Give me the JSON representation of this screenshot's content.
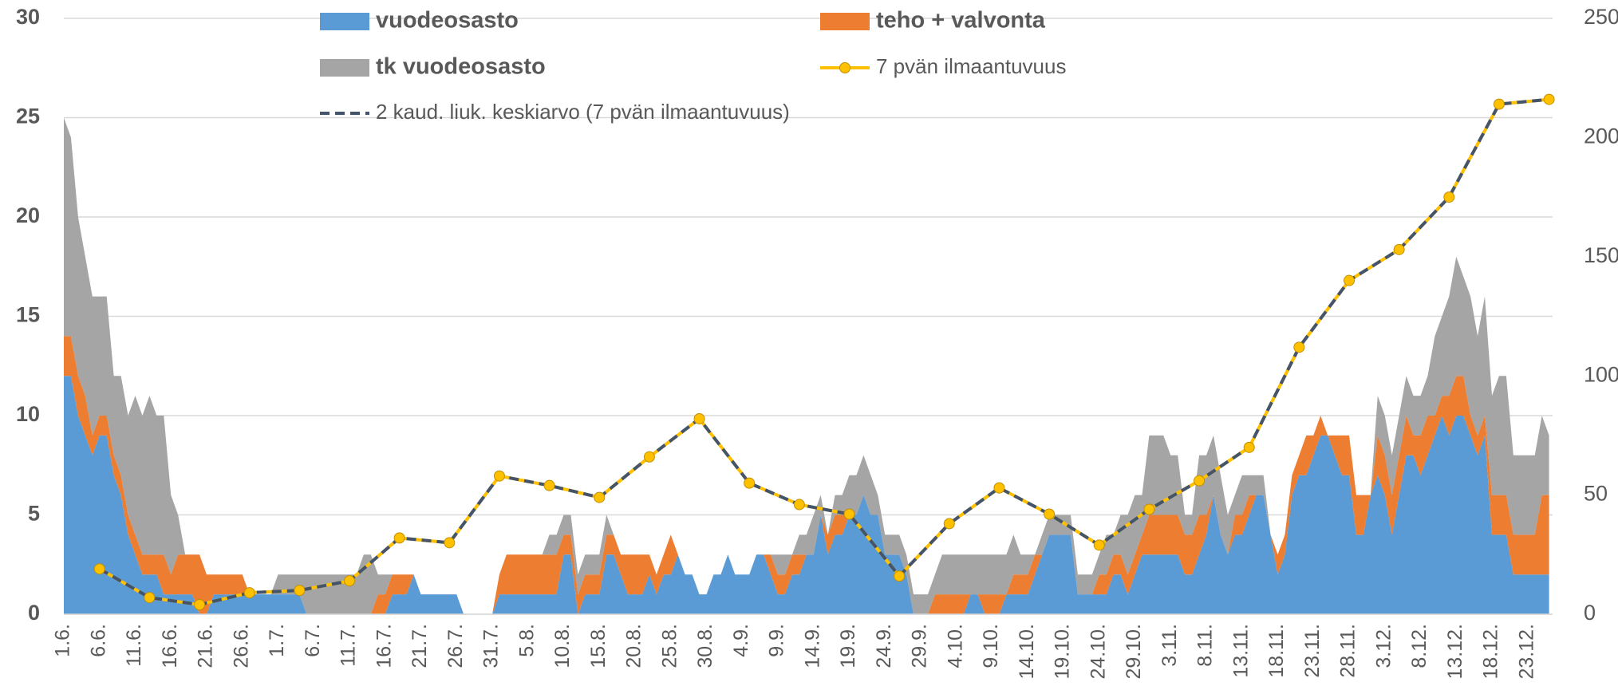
{
  "chart_data": {
    "type": "area",
    "categories": [
      "1.6.",
      null,
      null,
      null,
      null,
      "6.6.",
      null,
      null,
      null,
      null,
      "11.6.",
      null,
      null,
      null,
      null,
      "16.6.",
      null,
      null,
      null,
      null,
      "21.6.",
      null,
      null,
      null,
      null,
      "26.6.",
      null,
      null,
      null,
      null,
      "1.7.",
      null,
      null,
      null,
      null,
      "6.7.",
      null,
      null,
      null,
      null,
      "11.7.",
      null,
      null,
      null,
      null,
      "16.7.",
      null,
      null,
      null,
      null,
      "21.7.",
      null,
      null,
      null,
      null,
      "26.7.",
      null,
      null,
      null,
      null,
      "31.7.",
      null,
      null,
      null,
      null,
      "5.8.",
      null,
      null,
      null,
      null,
      "10.8.",
      null,
      null,
      null,
      null,
      "15.8.",
      null,
      null,
      null,
      null,
      "20.8.",
      null,
      null,
      null,
      null,
      "25.8.",
      null,
      null,
      null,
      null,
      "30.8.",
      null,
      null,
      null,
      null,
      "4.9.",
      null,
      null,
      null,
      null,
      "9.9.",
      null,
      null,
      null,
      null,
      "14.9.",
      null,
      null,
      null,
      null,
      "19.9.",
      null,
      null,
      null,
      null,
      "24.9.",
      null,
      null,
      null,
      null,
      "29.9.",
      null,
      null,
      null,
      null,
      "4.10.",
      null,
      null,
      null,
      null,
      "9.10.",
      null,
      null,
      null,
      null,
      "14.10.",
      null,
      null,
      null,
      null,
      "19.10.",
      null,
      null,
      null,
      null,
      "24.10.",
      null,
      null,
      null,
      null,
      "29.10.",
      null,
      null,
      null,
      null,
      "3.11.",
      null,
      null,
      null,
      null,
      "8.11.",
      null,
      null,
      null,
      null,
      "13.11.",
      null,
      null,
      null,
      null,
      "18.11.",
      null,
      null,
      null,
      null,
      "23.11.",
      null,
      null,
      null,
      null,
      "28.11.",
      null,
      null,
      null,
      null,
      "3.12.",
      null,
      null,
      null,
      null,
      "8.12.",
      null,
      null,
      null,
      null,
      "13.12.",
      null,
      null,
      null,
      null,
      "18.12.",
      null,
      null,
      null,
      null,
      "23.12.",
      null,
      null,
      null
    ],
    "series": [
      {
        "name": "vuodeosasto",
        "type": "area",
        "color": "#5b9bd5",
        "values": [
          12,
          12,
          10,
          9,
          8,
          9,
          9,
          7,
          6,
          4,
          3,
          2,
          2,
          2,
          1,
          1,
          1,
          1,
          1,
          0,
          0,
          1,
          1,
          1,
          1,
          1,
          1,
          1,
          1,
          1,
          1,
          1,
          1,
          1,
          0,
          0,
          0,
          0,
          0,
          0,
          0,
          0,
          0,
          0,
          0,
          0,
          1,
          1,
          1,
          2,
          1,
          1,
          1,
          1,
          1,
          1,
          0,
          0,
          0,
          0,
          0,
          1,
          1,
          1,
          1,
          1,
          1,
          1,
          1,
          1,
          3,
          3,
          0,
          1,
          1,
          1,
          3,
          3,
          2,
          1,
          1,
          1,
          2,
          1,
          2,
          2,
          3,
          2,
          2,
          1,
          1,
          2,
          2,
          3,
          2,
          2,
          2,
          3,
          3,
          2,
          1,
          1,
          2,
          2,
          3,
          3,
          5,
          3,
          4,
          4,
          5,
          5,
          6,
          5,
          5,
          3,
          3,
          3,
          2,
          0,
          0,
          0,
          0,
          0,
          0,
          0,
          0,
          1,
          1,
          0,
          0,
          0,
          1,
          1,
          1,
          1,
          2,
          3,
          4,
          4,
          4,
          4,
          1,
          1,
          1,
          1,
          1,
          2,
          2,
          1,
          2,
          3,
          3,
          3,
          3,
          3,
          3,
          2,
          2,
          3,
          4,
          6,
          4,
          3,
          4,
          4,
          5,
          6,
          6,
          4,
          2,
          3,
          6,
          7,
          7,
          8,
          9,
          9,
          8,
          7,
          7,
          4,
          4,
          6,
          7,
          6,
          4,
          6,
          8,
          8,
          7,
          8,
          9,
          10,
          9,
          10,
          10,
          9,
          8,
          9,
          4,
          4,
          4,
          2,
          2,
          2,
          2,
          2,
          2
        ]
      },
      {
        "name": "teho + valvonta",
        "type": "area",
        "color": "#ed7d31",
        "values": [
          2,
          2,
          2,
          2,
          1,
          1,
          1,
          1,
          1,
          1,
          1,
          1,
          1,
          1,
          2,
          1,
          2,
          2,
          2,
          3,
          2,
          1,
          1,
          1,
          1,
          1,
          0,
          0,
          0,
          0,
          0,
          0,
          0,
          0,
          0,
          0,
          0,
          0,
          0,
          0,
          0,
          0,
          0,
          0,
          1,
          1,
          1,
          1,
          1,
          0,
          0,
          0,
          0,
          0,
          0,
          0,
          0,
          0,
          0,
          0,
          0,
          1,
          2,
          2,
          2,
          2,
          2,
          2,
          2,
          2,
          1,
          1,
          1,
          1,
          1,
          1,
          1,
          1,
          1,
          2,
          2,
          2,
          1,
          1,
          1,
          2,
          0,
          0,
          0,
          0,
          0,
          0,
          0,
          0,
          0,
          0,
          0,
          0,
          0,
          1,
          1,
          1,
          1,
          1,
          0,
          0,
          0,
          1,
          1,
          1,
          0,
          0,
          0,
          0,
          0,
          0,
          0,
          0,
          0,
          0,
          0,
          0,
          1,
          1,
          1,
          1,
          1,
          0,
          0,
          1,
          1,
          1,
          0,
          1,
          1,
          1,
          1,
          0,
          0,
          0,
          0,
          0,
          0,
          0,
          0,
          1,
          1,
          1,
          1,
          1,
          1,
          1,
          2,
          2,
          2,
          2,
          2,
          2,
          2,
          2,
          1,
          0,
          0,
          0,
          1,
          1,
          1,
          0,
          0,
          0,
          1,
          1,
          1,
          1,
          2,
          1,
          1,
          0,
          1,
          2,
          2,
          2,
          2,
          0,
          2,
          2,
          2,
          2,
          2,
          1,
          2,
          2,
          1,
          1,
          2,
          2,
          2,
          1,
          1,
          1,
          2,
          2,
          2,
          2,
          2,
          2,
          2,
          4,
          4
        ]
      },
      {
        "name": "tk vuodeosasto",
        "type": "area",
        "color": "#a5a5a5",
        "values": [
          11,
          10,
          8,
          7,
          7,
          6,
          6,
          4,
          5,
          5,
          7,
          7,
          8,
          7,
          7,
          4,
          2,
          0,
          0,
          0,
          0,
          0,
          0,
          0,
          0,
          0,
          0,
          0,
          0,
          0,
          1,
          1,
          1,
          1,
          2,
          2,
          2,
          2,
          2,
          2,
          2,
          2,
          3,
          3,
          1,
          1,
          0,
          0,
          0,
          0,
          0,
          0,
          0,
          0,
          0,
          0,
          0,
          0,
          0,
          0,
          0,
          0,
          0,
          0,
          0,
          0,
          0,
          0,
          1,
          1,
          1,
          1,
          1,
          1,
          1,
          1,
          1,
          0,
          0,
          0,
          0,
          0,
          0,
          0,
          0,
          0,
          0,
          0,
          0,
          0,
          0,
          0,
          0,
          0,
          0,
          0,
          0,
          0,
          0,
          0,
          1,
          1,
          0,
          1,
          1,
          2,
          1,
          0,
          1,
          1,
          2,
          2,
          2,
          2,
          1,
          1,
          1,
          1,
          1,
          1,
          1,
          1,
          1,
          2,
          2,
          2,
          2,
          2,
          2,
          2,
          2,
          2,
          2,
          2,
          1,
          1,
          0,
          1,
          1,
          1,
          1,
          1,
          1,
          1,
          1,
          1,
          2,
          1,
          2,
          3,
          3,
          2,
          4,
          4,
          4,
          3,
          3,
          1,
          1,
          3,
          3,
          3,
          3,
          2,
          1,
          2,
          1,
          1,
          1,
          0,
          0,
          0,
          0,
          0,
          0,
          0,
          0,
          0,
          0,
          0,
          0,
          0,
          0,
          0,
          2,
          2,
          2,
          2,
          2,
          2,
          2,
          2,
          4,
          4,
          5,
          6,
          5,
          6,
          5,
          6,
          5,
          6,
          6,
          4,
          4,
          4,
          4,
          4,
          3
        ]
      },
      {
        "name": "7 pvän ilmaantuvuus",
        "type": "line",
        "axis": "y2",
        "color": "#ffc000",
        "markers": true,
        "values": [
          null,
          null,
          null,
          null,
          null,
          19,
          null,
          null,
          null,
          null,
          null,
          null,
          7,
          null,
          null,
          null,
          null,
          null,
          null,
          4,
          null,
          null,
          null,
          null,
          null,
          null,
          9,
          null,
          null,
          null,
          null,
          null,
          null,
          10,
          null,
          null,
          null,
          null,
          null,
          null,
          14,
          null,
          null,
          null,
          null,
          null,
          null,
          32,
          null,
          null,
          null,
          null,
          null,
          null,
          30,
          null,
          null,
          null,
          null,
          null,
          null,
          58,
          null,
          null,
          null,
          null,
          null,
          null,
          54,
          null,
          null,
          null,
          null,
          null,
          null,
          49,
          null,
          null,
          null,
          null,
          null,
          null,
          66,
          null,
          null,
          null,
          null,
          null,
          null,
          82,
          null,
          null,
          null,
          null,
          null,
          null,
          55,
          null,
          null,
          null,
          null,
          null,
          null,
          46,
          null,
          null,
          null,
          null,
          null,
          null,
          42,
          null,
          null,
          null,
          null,
          null,
          null,
          16,
          null,
          null,
          null,
          null,
          null,
          null,
          38,
          null,
          null,
          null,
          null,
          null,
          null,
          53,
          null,
          null,
          null,
          null,
          null,
          null,
          42,
          null,
          null,
          null,
          null,
          null,
          null,
          29,
          null,
          null,
          null,
          null,
          null,
          null,
          44,
          null,
          null,
          null,
          null,
          null,
          null,
          56,
          null,
          null,
          null,
          null,
          null,
          null,
          70,
          null,
          null,
          null,
          null,
          null,
          null,
          112,
          null,
          null,
          null,
          null,
          null,
          null,
          140,
          null,
          null,
          null,
          null,
          null,
          null,
          153,
          null,
          null,
          null,
          null,
          null,
          null,
          175,
          null,
          null,
          null,
          null,
          null,
          null,
          214,
          null,
          null,
          null,
          null,
          null,
          null,
          216
        ]
      },
      {
        "name": "2 kaud. liuk. keskiarvo (7 pvän ilmaantuvuus)",
        "type": "line",
        "axis": "y2",
        "color": "#44546a",
        "dashed": true,
        "values": [
          null,
          null,
          null,
          null,
          null,
          19,
          null,
          null,
          null,
          null,
          null,
          null,
          7,
          null,
          null,
          null,
          null,
          null,
          null,
          4,
          null,
          null,
          null,
          null,
          null,
          null,
          9,
          null,
          null,
          null,
          null,
          null,
          null,
          10,
          null,
          null,
          null,
          null,
          null,
          null,
          14,
          null,
          null,
          null,
          null,
          null,
          null,
          32,
          null,
          null,
          null,
          null,
          null,
          null,
          30,
          null,
          null,
          null,
          null,
          null,
          null,
          58,
          null,
          null,
          null,
          null,
          null,
          null,
          54,
          null,
          null,
          null,
          null,
          null,
          null,
          49,
          null,
          null,
          null,
          null,
          null,
          null,
          66,
          null,
          null,
          null,
          null,
          null,
          null,
          82,
          null,
          null,
          null,
          null,
          null,
          null,
          55,
          null,
          null,
          null,
          null,
          null,
          null,
          46,
          null,
          null,
          null,
          null,
          null,
          null,
          42,
          null,
          null,
          null,
          null,
          null,
          null,
          16,
          null,
          null,
          null,
          null,
          null,
          null,
          38,
          null,
          null,
          null,
          null,
          null,
          null,
          53,
          null,
          null,
          null,
          null,
          null,
          null,
          42,
          null,
          null,
          null,
          null,
          null,
          null,
          29,
          null,
          null,
          null,
          null,
          null,
          null,
          44,
          null,
          null,
          null,
          null,
          null,
          null,
          56,
          null,
          null,
          null,
          null,
          null,
          null,
          70,
          null,
          null,
          null,
          null,
          null,
          null,
          112,
          null,
          null,
          null,
          null,
          null,
          null,
          140,
          null,
          null,
          null,
          null,
          null,
          null,
          153,
          null,
          null,
          null,
          null,
          null,
          null,
          175,
          null,
          null,
          null,
          null,
          null,
          null,
          214,
          null,
          null,
          null,
          null,
          null,
          null,
          216
        ]
      }
    ],
    "stacked": true,
    "connect_gaps": true,
    "ylim": [
      0,
      30
    ],
    "yticks": [
      0,
      5,
      10,
      15,
      20,
      25,
      30
    ],
    "y2lim": [
      0,
      250
    ],
    "y2ticks": [
      0,
      50,
      100,
      150,
      200,
      250
    ],
    "grid": true,
    "legend": "top"
  }
}
